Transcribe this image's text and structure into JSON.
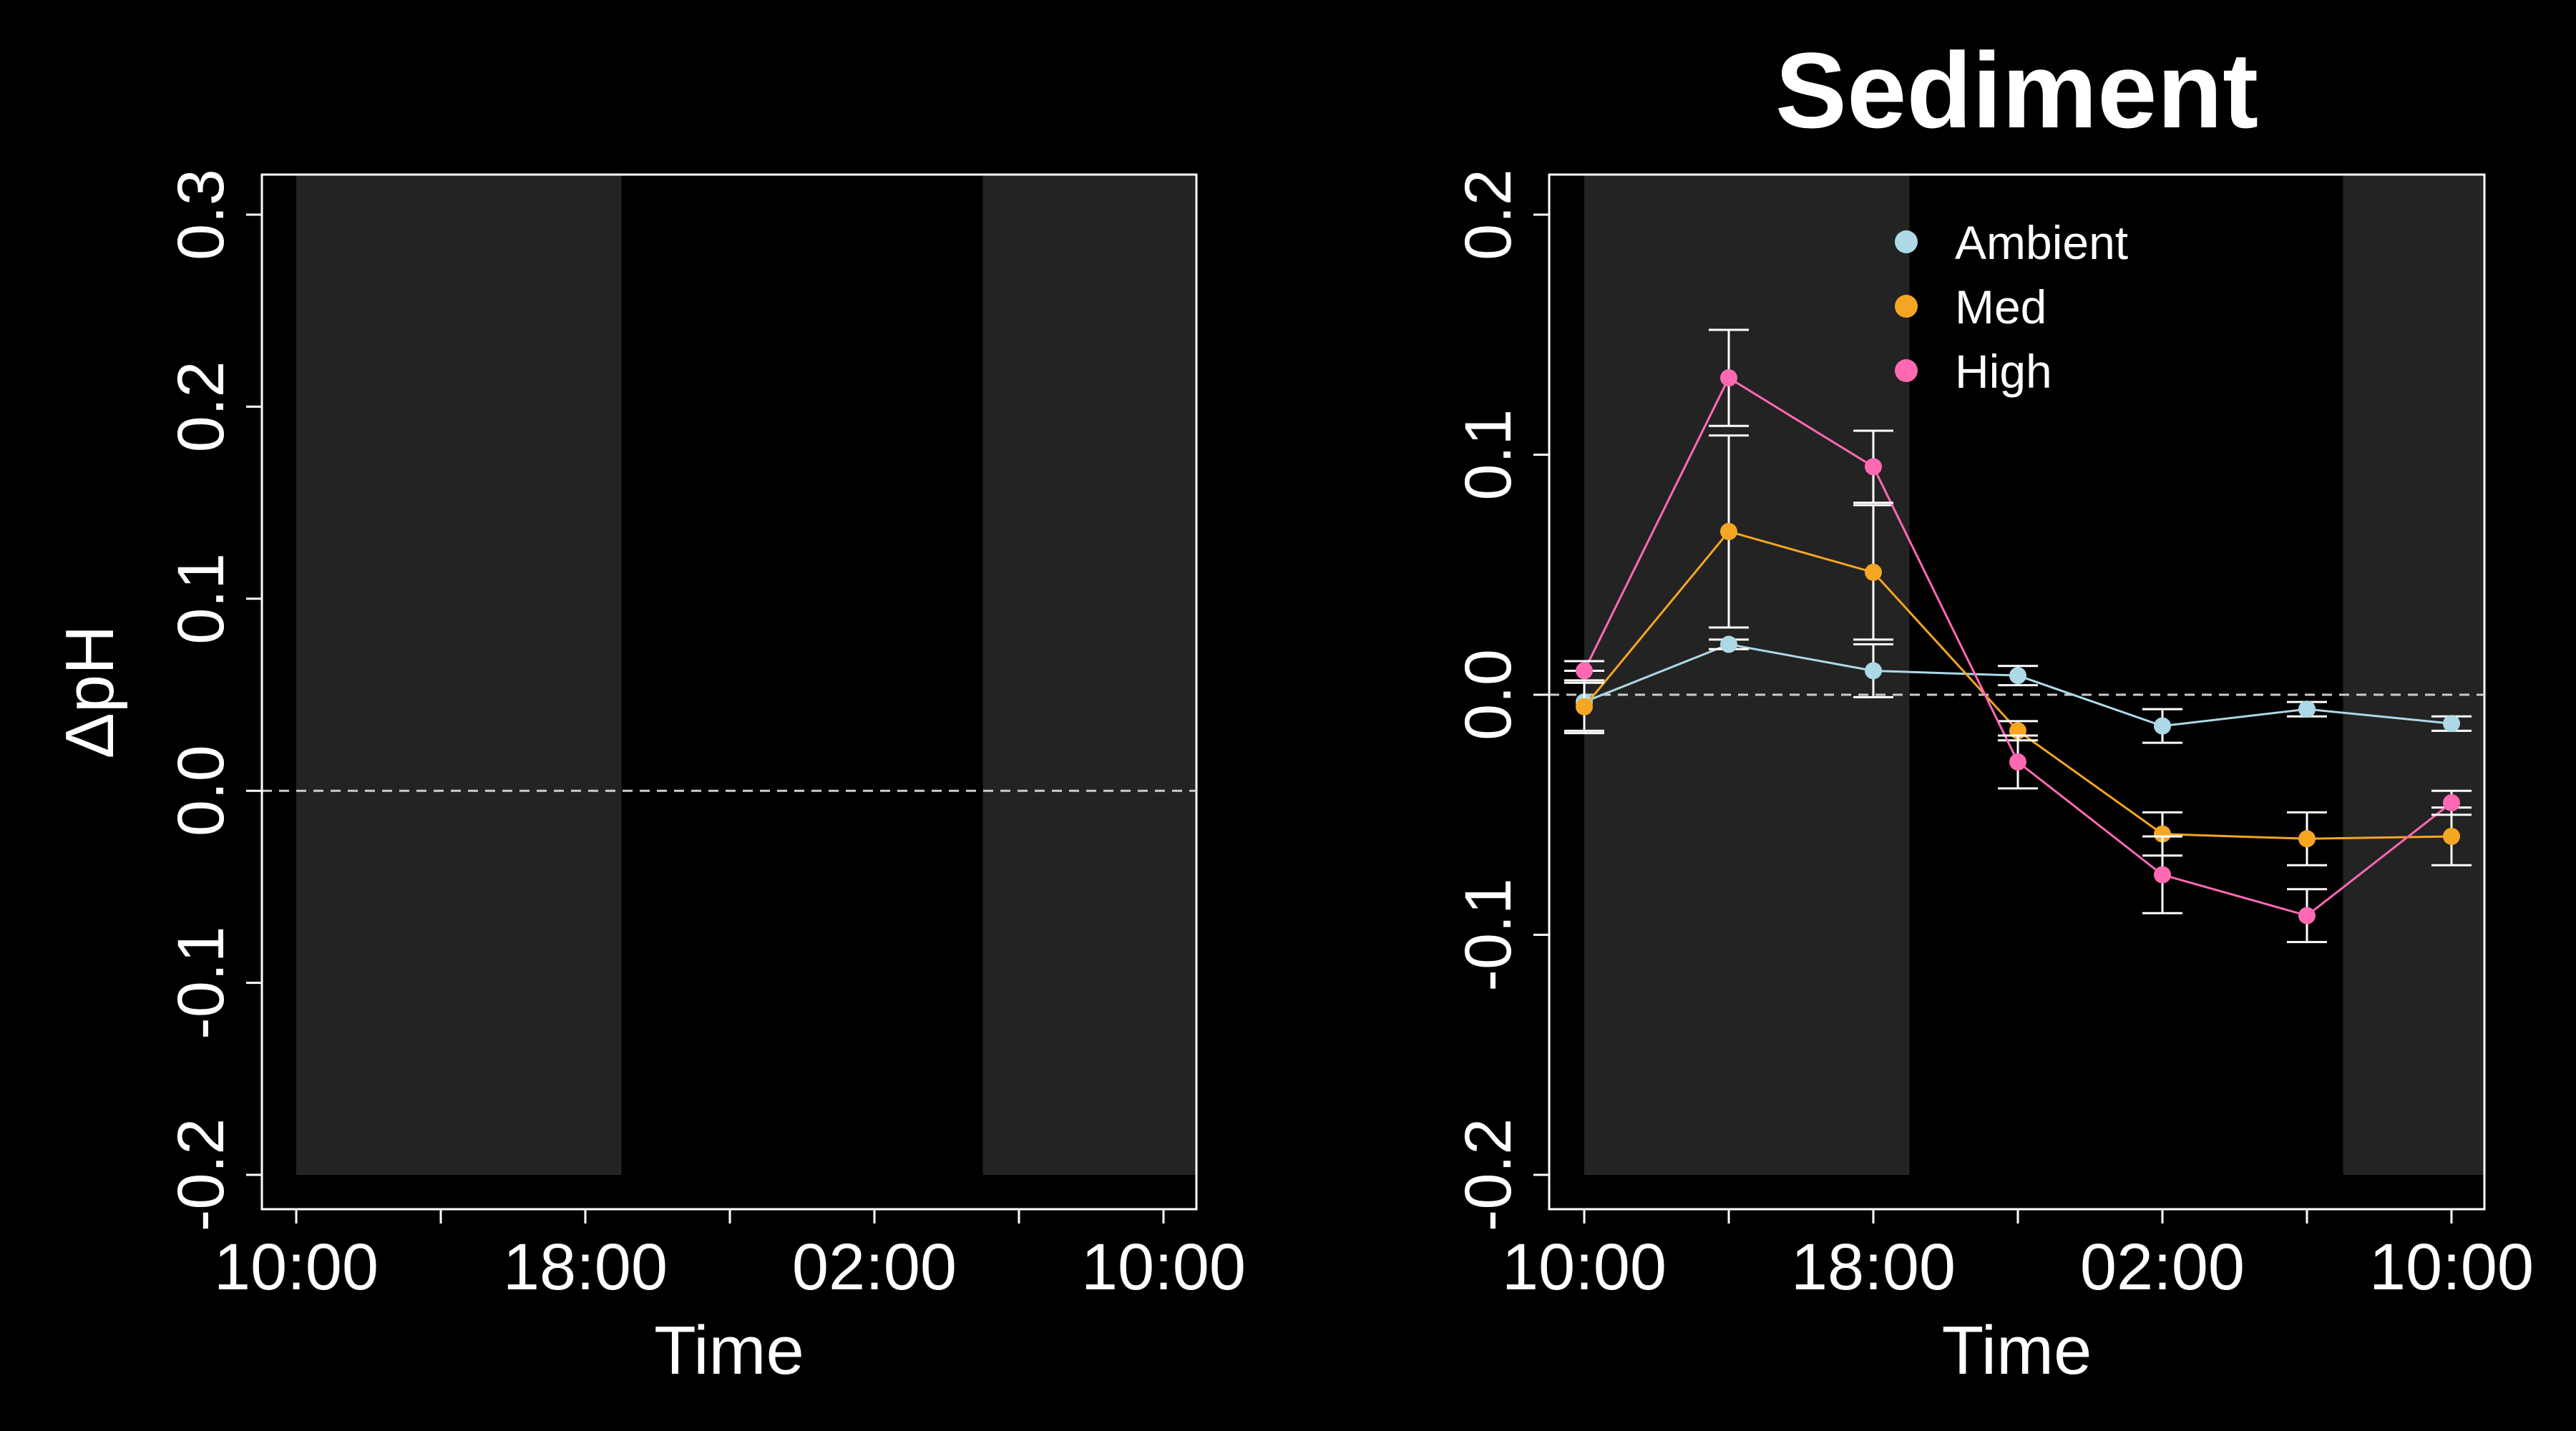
{
  "colors": {
    "background": "#000000",
    "night_shading": "#232323",
    "axis": "#ffffff",
    "text": "#ffffff",
    "ambient": "#add8e6",
    "med": "#f5a623",
    "high": "#ff69b4"
  },
  "chart_data": [
    {
      "type": "line",
      "title": "",
      "xlabel": "Time",
      "ylabel": "ΔpH",
      "x_ticks": [
        "10:00",
        "",
        "18:00",
        "",
        "02:00",
        "",
        "10:00"
      ],
      "ylim": [
        -0.2,
        0.3
      ],
      "y_ticks": [
        "-0.2",
        "-0.1",
        "0.0",
        "0.1",
        "0.2",
        "0.3"
      ],
      "reference_line": 0.0,
      "dark_periods": [
        [
          0,
          4.5
        ],
        [
          9.5,
          13
        ]
      ],
      "series": []
    },
    {
      "type": "line",
      "title": "Sediment",
      "xlabel": "Time",
      "ylabel": "",
      "x_ticks": [
        "10:00",
        "",
        "18:00",
        "",
        "02:00",
        "",
        "10:00"
      ],
      "ylim": [
        -0.2,
        0.2
      ],
      "y_ticks": [
        "-0.2",
        "-0.1",
        "0.0",
        "0.1",
        "0.2"
      ],
      "reference_line": 0.0,
      "dark_periods": [
        [
          0,
          4.5
        ],
        [
          10.5,
          13
        ]
      ],
      "legend": "top-center",
      "x": [
        0,
        2,
        4,
        6,
        8,
        10,
        12
      ],
      "series": [
        {
          "name": "Ambient",
          "color_key": "ambient",
          "values": [
            -0.003,
            0.021,
            0.01,
            0.008,
            -0.013,
            -0.006,
            -0.012
          ],
          "errors": [
            0.013,
            0.002,
            0.011,
            0.004,
            0.007,
            0.003,
            0.003
          ]
        },
        {
          "name": "Med",
          "color_key": "med",
          "values": [
            -0.005,
            0.068,
            0.051,
            -0.015,
            -0.058,
            -0.06,
            -0.059
          ],
          "errors": [
            0.01,
            0.04,
            0.028,
            0.004,
            0.009,
            0.011,
            0.012
          ]
        },
        {
          "name": "High",
          "color_key": "high",
          "values": [
            0.01,
            0.132,
            0.095,
            -0.028,
            -0.075,
            -0.092,
            -0.045
          ],
          "errors": [
            0.004,
            0.02,
            0.015,
            0.011,
            0.016,
            0.011,
            0.005
          ]
        }
      ]
    }
  ]
}
